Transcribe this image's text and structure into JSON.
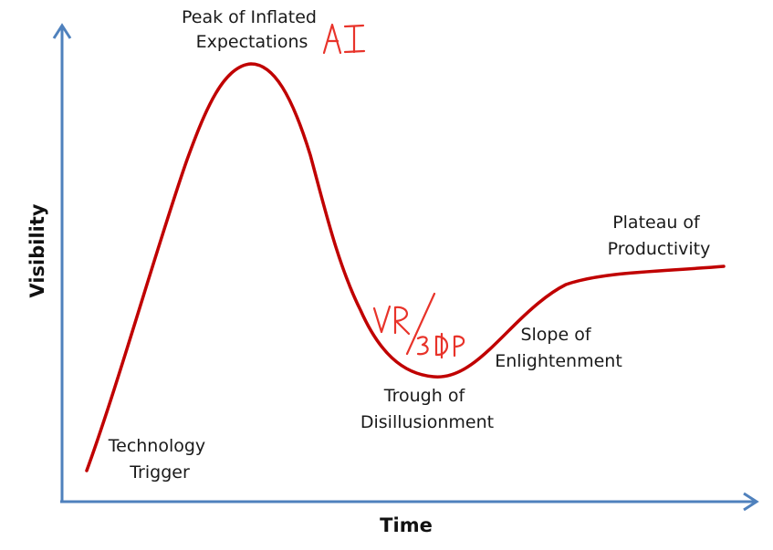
{
  "axes": {
    "x_label": "Time",
    "y_label": "Visibility"
  },
  "phases": {
    "trigger": [
      "Technology",
      "Trigger"
    ],
    "peak": [
      "Peak of Inflated",
      "Expectations"
    ],
    "trough": [
      "Trough of",
      "Disillusionment"
    ],
    "slope": [
      "Slope of",
      "Enlightenment"
    ],
    "plateau": [
      "Plateau of",
      "Productivity"
    ]
  },
  "annotations": {
    "peak_note": "AI",
    "trough_note": "VR/3DP"
  },
  "colors": {
    "axis": "#4f81bd",
    "curve": "#c00000",
    "handwriting": "#e8332a"
  }
}
